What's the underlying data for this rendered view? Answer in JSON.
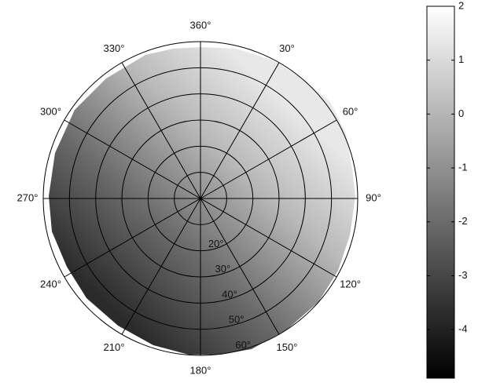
{
  "chart_data": {
    "type": "polar-heatmap",
    "colormap": "gray",
    "thetaticks": [
      {
        "value": 0,
        "label": "360°"
      },
      {
        "value": 30,
        "label": "30°"
      },
      {
        "value": 60,
        "label": "60°"
      },
      {
        "value": 90,
        "label": "90°"
      },
      {
        "value": 120,
        "label": "120°"
      },
      {
        "value": 150,
        "label": "150°"
      },
      {
        "value": 180,
        "label": "180°"
      },
      {
        "value": 210,
        "label": "210°"
      },
      {
        "value": 240,
        "label": "240°"
      },
      {
        "value": 270,
        "label": "270°"
      },
      {
        "value": 300,
        "label": "300°"
      },
      {
        "value": 330,
        "label": "330°"
      }
    ],
    "rlim": [
      0,
      60
    ],
    "rticks": [
      {
        "value": 10,
        "label": null
      },
      {
        "value": 20,
        "label": "20°"
      },
      {
        "value": 30,
        "label": "30°"
      },
      {
        "value": 40,
        "label": "40°"
      },
      {
        "value": 50,
        "label": "50°"
      },
      {
        "value": 60,
        "label": "60°"
      }
    ],
    "clim": [
      -4.9,
      2
    ],
    "cticks": [
      2,
      1,
      0,
      -1,
      -2,
      -3,
      -4
    ]
  }
}
